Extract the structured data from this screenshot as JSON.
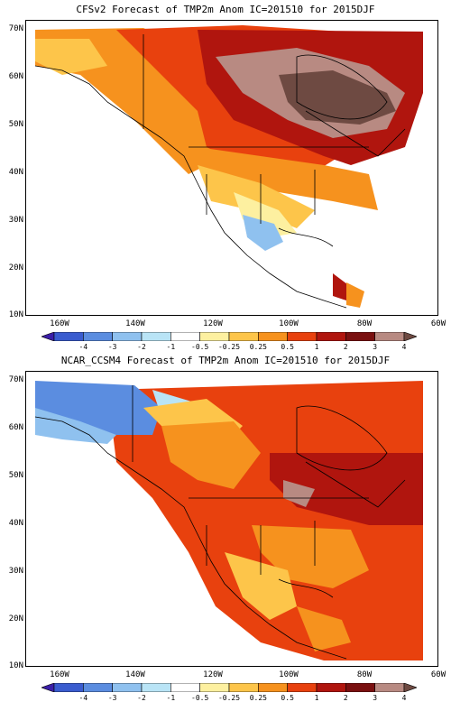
{
  "panels": [
    {
      "title": "CFSv2 Forecast of TMP2m Anom  IC=201510 for 2015DJF",
      "lat_labels": [
        "70N",
        "60N",
        "50N",
        "40N",
        "30N",
        "20N",
        "10N"
      ],
      "lon_labels": [
        "160W",
        "140W",
        "120W",
        "100W",
        "80W",
        "60W"
      ],
      "colorbar_labels": [
        "-4",
        "-3",
        "-2",
        "-1",
        "-0.5",
        "-0.25",
        "0.25",
        "0.5",
        "1",
        "2",
        "3",
        "4"
      ]
    },
    {
      "title": "NCAR_CCSM4 Forecast of TMP2m Anom  IC=201510 for 2015DJF",
      "lat_labels": [
        "70N",
        "60N",
        "50N",
        "40N",
        "30N",
        "20N",
        "10N"
      ],
      "lon_labels": [
        "160W",
        "140W",
        "120W",
        "100W",
        "80W",
        "60W"
      ],
      "colorbar_labels": [
        "-4",
        "-3",
        "-2",
        "-1",
        "-0.5",
        "-0.25",
        "0.25",
        "0.5",
        "1",
        "2",
        "3",
        "4"
      ]
    }
  ],
  "colorbar_colors": [
    "#3b1fa8",
    "#3a5ccf",
    "#5b8de0",
    "#8fc1ef",
    "#b9e4f6",
    "#ffffff",
    "#fdf0a0",
    "#fdc54a",
    "#f6921e",
    "#e8410e",
    "#b0150e",
    "#7a1010",
    "#b88a82",
    "#6e4a42"
  ]
}
